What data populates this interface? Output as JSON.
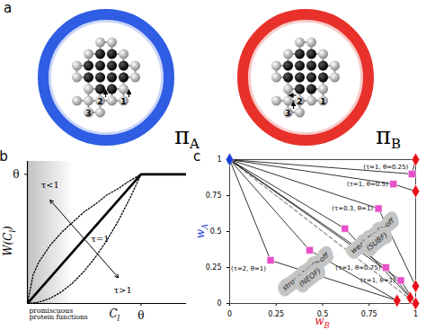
{
  "diagram": {
    "panel": "a",
    "circles": [
      {
        "color": "#2f5de3",
        "label": {
          "text": "π",
          "sub": "A"
        }
      },
      {
        "color": "#e8312b",
        "label": {
          "text": "π",
          "sub": "B"
        }
      }
    ],
    "sites": [
      "1",
      "2",
      "3"
    ]
  },
  "chart_data": [
    {
      "panel": "b",
      "type": "line",
      "xlabel": {
        "text": "C",
        "sub": "l"
      },
      "ylabel": {
        "text": "W(C",
        "sub": "l",
        "after": ")"
      },
      "xlim": [
        0,
        1.4
      ],
      "ylim": [
        0,
        1.1
      ],
      "xticks": [
        {
          "value": 1,
          "label": "θ"
        }
      ],
      "yticks": [
        {
          "value": 1,
          "label": "θ"
        }
      ],
      "annotation": "promiscuous\nprotein functions",
      "series": [
        {
          "name": "τ<1",
          "line_style": "dotted",
          "color": "#000000",
          "x": [
            0,
            0.05,
            0.1,
            0.2,
            0.3,
            0.4,
            0.5,
            0.6,
            0.7,
            0.8,
            0.9,
            1
          ],
          "values": [
            0,
            0.22,
            0.32,
            0.45,
            0.55,
            0.63,
            0.71,
            0.77,
            0.84,
            0.89,
            0.95,
            1
          ]
        },
        {
          "name": "τ=1",
          "line_style": "solid",
          "color": "#000000",
          "x": [
            0,
            1,
            1.4
          ],
          "values": [
            0,
            1,
            1
          ]
        },
        {
          "name": "τ>1",
          "line_style": "dotted",
          "color": "#000000",
          "x": [
            0,
            0.1,
            0.2,
            0.3,
            0.4,
            0.5,
            0.6,
            0.7,
            0.8,
            0.9,
            1
          ],
          "values": [
            0,
            0.01,
            0.04,
            0.09,
            0.16,
            0.25,
            0.36,
            0.49,
            0.64,
            0.81,
            1
          ]
        }
      ]
    },
    {
      "panel": "c",
      "type": "scatter",
      "xlabel": {
        "text": "w",
        "sub": "B",
        "color": "#e8101a"
      },
      "ylabel": {
        "text": "w",
        "sub": "A",
        "color": "#1a3fd6"
      },
      "xlim": [
        0,
        1
      ],
      "ylim": [
        0,
        1
      ],
      "xticks": [
        0,
        0.25,
        0.5,
        0.75,
        1
      ],
      "yticks": [
        0,
        0.25,
        0.5,
        0.75,
        1
      ],
      "annotations": [
        "weak trade-off\n(SUBF)",
        "strong trade-off\n(NEOF)"
      ],
      "series": [
        {
          "type": "line",
          "line_style": "dashed",
          "color": "#9a9a9a",
          "x": [
            0,
            1
          ],
          "values": [
            1,
            0
          ]
        },
        {
          "type": "line",
          "line_style": "solid",
          "color": "#000000",
          "x": [
            0,
            0.98,
            1
          ],
          "values": [
            1,
            0.9,
            1
          ]
        },
        {
          "type": "line",
          "line_style": "solid",
          "color": "#000000",
          "x": [
            0,
            0.88,
            1
          ],
          "values": [
            1,
            0.83,
            0.78
          ]
        },
        {
          "type": "line",
          "line_style": "solid",
          "color": "#000000",
          "x": [
            0,
            0.8,
            1
          ],
          "values": [
            1,
            0.66,
            0.12
          ]
        },
        {
          "type": "line",
          "line_style": "solid",
          "color": "#000000",
          "x": [
            0,
            0.62,
            0.97
          ],
          "values": [
            1,
            0.52,
            0.04
          ]
        },
        {
          "type": "line",
          "line_style": "solid",
          "color": "#000000",
          "x": [
            0,
            0.43,
            0.9
          ],
          "values": [
            1,
            0.37,
            0.02
          ]
        },
        {
          "type": "line",
          "line_style": "solid",
          "color": "#000000",
          "x": [
            0,
            0.22,
            0.9
          ],
          "values": [
            1,
            0.3,
            0.02
          ]
        },
        {
          "type": "line",
          "line_style": "solid",
          "color": "#000000",
          "x": [
            0,
            0.84,
            1
          ],
          "values": [
            1,
            0.25,
            0
          ]
        },
        {
          "type": "line",
          "line_style": "solid",
          "color": "#000000",
          "x": [
            0,
            0.92,
            1
          ],
          "values": [
            1,
            0.16,
            0
          ]
        },
        {
          "type": "scatter",
          "marker": "square",
          "color": "#e84fc8",
          "x": [
            0.98,
            0.88,
            0.8,
            0.62,
            0.43,
            0.22,
            0.84,
            0.92
          ],
          "values": [
            0.9,
            0.83,
            0.66,
            0.52,
            0.37,
            0.3,
            0.25,
            0.16
          ],
          "labels": [
            "(τ=1, θ=0.25)",
            "(τ=1, θ=0.5)",
            "(τ=0.3, θ=1)",
            null,
            null,
            "(τ=2, θ=1)",
            "(τ=1, θ=0.75)",
            "(τ=1, θ=1)"
          ]
        },
        {
          "type": "scatter",
          "marker": "diamond",
          "color": "#e8101a",
          "x": [
            1,
            1,
            1,
            0.97,
            0.9,
            1
          ],
          "values": [
            1,
            0.78,
            0.12,
            0.04,
            0.02,
            0
          ]
        },
        {
          "type": "scatter",
          "marker": "diamond",
          "color": "#1a3fd6",
          "x": [
            0
          ],
          "values": [
            1
          ]
        }
      ]
    }
  ]
}
